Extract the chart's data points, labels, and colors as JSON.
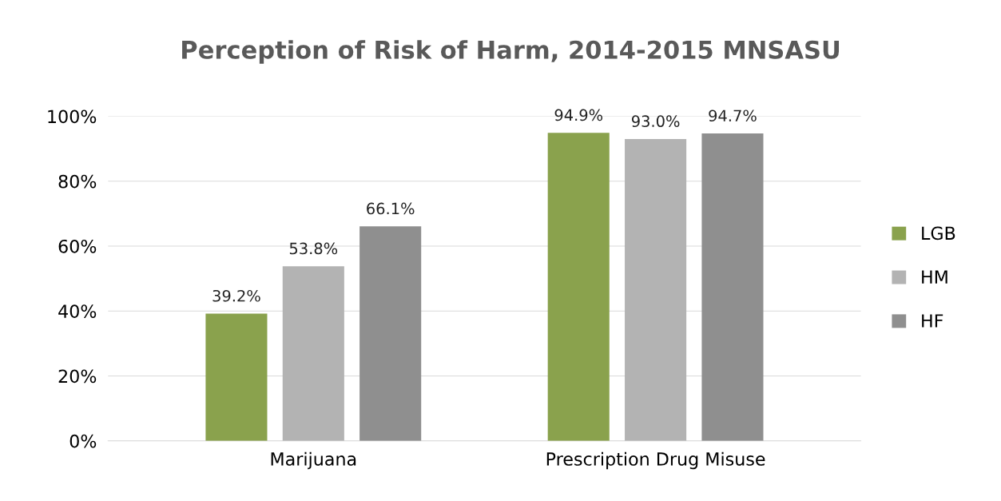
{
  "chart_data": {
    "type": "bar",
    "title": "Perception of Risk of Harm, 2014-2015 MNSASU",
    "categories": [
      "Marijuana",
      "Prescription Drug Misuse"
    ],
    "series": [
      {
        "name": "LGB",
        "color": "#8aa24d",
        "values": [
          39.2,
          94.9
        ],
        "value_labels": [
          "39.2%",
          "94.9%"
        ]
      },
      {
        "name": "HM",
        "color": "#b3b3b3",
        "values": [
          53.8,
          93.0
        ],
        "value_labels": [
          "53.8%",
          "93.0%"
        ]
      },
      {
        "name": "HF",
        "color": "#8f8f8f",
        "values": [
          66.1,
          94.7
        ],
        "value_labels": [
          "66.1%",
          "94.7%"
        ]
      }
    ],
    "ylim": [
      0,
      100
    ],
    "yticks": [
      {
        "value": 0,
        "label": "0%"
      },
      {
        "value": 20,
        "label": "20%"
      },
      {
        "value": 40,
        "label": "40%"
      },
      {
        "value": 60,
        "label": "60%"
      },
      {
        "value": 80,
        "label": "80%"
      },
      {
        "value": 100,
        "label": "100%"
      }
    ],
    "grid": "y",
    "legend": "right"
  }
}
